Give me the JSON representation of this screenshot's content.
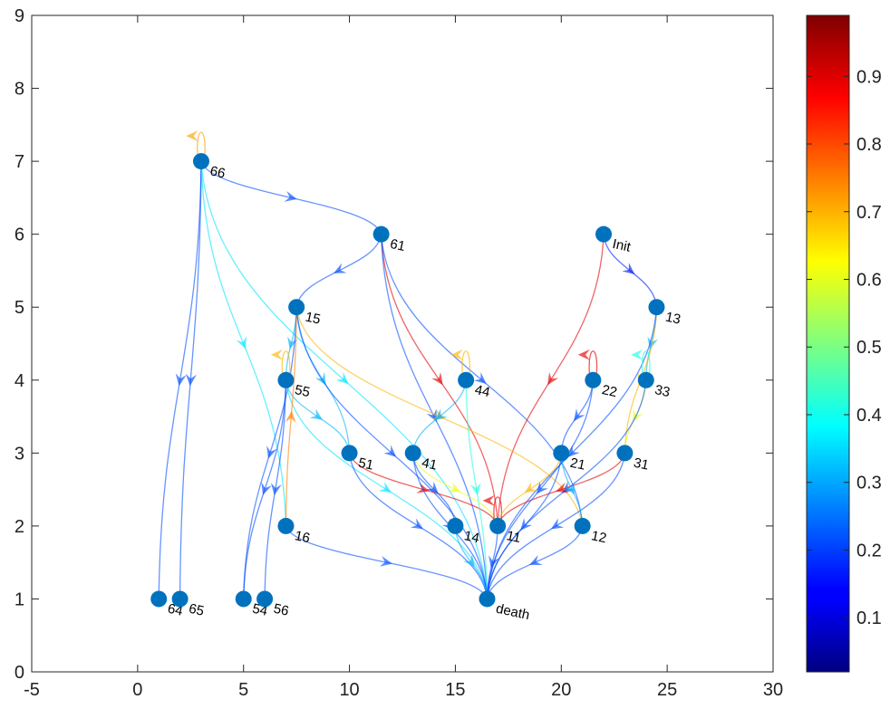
{
  "chart_data": {
    "type": "scatter",
    "title": "",
    "xlabel": "",
    "ylabel": "",
    "xlim": [
      -5,
      30
    ],
    "ylim": [
      0,
      9
    ],
    "x_ticks": [
      "-5",
      "0",
      "5",
      "10",
      "15",
      "20",
      "25",
      "30"
    ],
    "y_ticks": [
      "0",
      "1",
      "2",
      "3",
      "4",
      "5",
      "6",
      "7",
      "8",
      "9"
    ],
    "colorbar": {
      "ticks": [
        "0.1",
        "0.2",
        "0.3",
        "0.4",
        "0.5",
        "0.6",
        "0.7",
        "0.8",
        "0.9"
      ],
      "range": [
        0.02,
        0.99
      ],
      "colormap": "jet"
    },
    "node_color": "#0072BD",
    "nodes": [
      {
        "id": "66",
        "x": 3,
        "y": 7
      },
      {
        "id": "61",
        "x": 11.5,
        "y": 6
      },
      {
        "id": "Init",
        "x": 22,
        "y": 6
      },
      {
        "id": "15",
        "x": 7.5,
        "y": 5
      },
      {
        "id": "13",
        "x": 24.5,
        "y": 5
      },
      {
        "id": "55",
        "x": 7,
        "y": 4
      },
      {
        "id": "44",
        "x": 15.5,
        "y": 4
      },
      {
        "id": "22",
        "x": 21.5,
        "y": 4
      },
      {
        "id": "33",
        "x": 24,
        "y": 4
      },
      {
        "id": "51",
        "x": 10,
        "y": 3
      },
      {
        "id": "41",
        "x": 13,
        "y": 3
      },
      {
        "id": "21",
        "x": 20,
        "y": 3
      },
      {
        "id": "31",
        "x": 23,
        "y": 3
      },
      {
        "id": "16",
        "x": 7,
        "y": 2
      },
      {
        "id": "14",
        "x": 15,
        "y": 2
      },
      {
        "id": "11",
        "x": 17,
        "y": 2
      },
      {
        "id": "12",
        "x": 21,
        "y": 2
      },
      {
        "id": "64",
        "x": 1,
        "y": 1
      },
      {
        "id": "65",
        "x": 2,
        "y": 1
      },
      {
        "id": "54",
        "x": 5,
        "y": 1
      },
      {
        "id": "56",
        "x": 6,
        "y": 1
      },
      {
        "id": "death",
        "x": 16.5,
        "y": 1
      }
    ],
    "edges": [
      {
        "from": "66",
        "to": "66",
        "p": 0.72
      },
      {
        "from": "66",
        "to": "61",
        "p": 0.2
      },
      {
        "from": "66",
        "to": "64",
        "p": 0.2
      },
      {
        "from": "66",
        "to": "65",
        "p": 0.2
      },
      {
        "from": "66",
        "to": "16",
        "p": 0.35
      },
      {
        "from": "66",
        "to": "death",
        "p": 0.35
      },
      {
        "from": "61",
        "to": "15",
        "p": 0.2
      },
      {
        "from": "61",
        "to": "11",
        "p": 0.9
      },
      {
        "from": "61",
        "to": "death",
        "p": 0.2
      },
      {
        "from": "61",
        "to": "12",
        "p": 0.2
      },
      {
        "from": "Init",
        "to": "13",
        "p": 0.15
      },
      {
        "from": "Init",
        "to": "11",
        "p": 0.9
      },
      {
        "from": "15",
        "to": "55",
        "p": 0.3
      },
      {
        "from": "15",
        "to": "51",
        "p": 0.3
      },
      {
        "from": "15",
        "to": "12",
        "p": 0.7
      },
      {
        "from": "15",
        "to": "54",
        "p": 0.2
      },
      {
        "from": "15",
        "to": "death",
        "p": 0.2
      },
      {
        "from": "55",
        "to": "55",
        "p": 0.7
      },
      {
        "from": "55",
        "to": "51",
        "p": 0.3
      },
      {
        "from": "55",
        "to": "54",
        "p": 0.2
      },
      {
        "from": "55",
        "to": "56",
        "p": 0.2
      },
      {
        "from": "55",
        "to": "death",
        "p": 0.35
      },
      {
        "from": "51",
        "to": "11",
        "p": 0.9
      },
      {
        "from": "51",
        "to": "death",
        "p": 0.2
      },
      {
        "from": "16",
        "to": "15",
        "p": 0.75
      },
      {
        "from": "16",
        "to": "death",
        "p": 0.2
      },
      {
        "from": "44",
        "to": "44",
        "p": 0.7
      },
      {
        "from": "44",
        "to": "41",
        "p": 0.3
      },
      {
        "from": "44",
        "to": "death",
        "p": 0.4
      },
      {
        "from": "41",
        "to": "14",
        "p": 0.2
      },
      {
        "from": "41",
        "to": "11",
        "p": 0.6
      },
      {
        "from": "41",
        "to": "death",
        "p": 0.2
      },
      {
        "from": "14",
        "to": "death",
        "p": 0.3
      },
      {
        "from": "11",
        "to": "11",
        "p": 0.9
      },
      {
        "from": "11",
        "to": "death",
        "p": 0.2
      },
      {
        "from": "13",
        "to": "33",
        "p": 0.3
      },
      {
        "from": "13",
        "to": "31",
        "p": 0.7
      },
      {
        "from": "13",
        "to": "death",
        "p": 0.2
      },
      {
        "from": "33",
        "to": "33",
        "p": 0.4
      },
      {
        "from": "33",
        "to": "31",
        "p": 0.6
      },
      {
        "from": "33",
        "to": "death",
        "p": 0.2
      },
      {
        "from": "31",
        "to": "11",
        "p": 0.9
      },
      {
        "from": "31",
        "to": "death",
        "p": 0.2
      },
      {
        "from": "22",
        "to": "22",
        "p": 0.9
      },
      {
        "from": "22",
        "to": "21",
        "p": 0.2
      },
      {
        "from": "22",
        "to": "death",
        "p": 0.2
      },
      {
        "from": "21",
        "to": "12",
        "p": 0.3
      },
      {
        "from": "21",
        "to": "death",
        "p": 0.2
      },
      {
        "from": "21",
        "to": "11",
        "p": 0.7
      },
      {
        "from": "12",
        "to": "death",
        "p": 0.2
      }
    ]
  }
}
